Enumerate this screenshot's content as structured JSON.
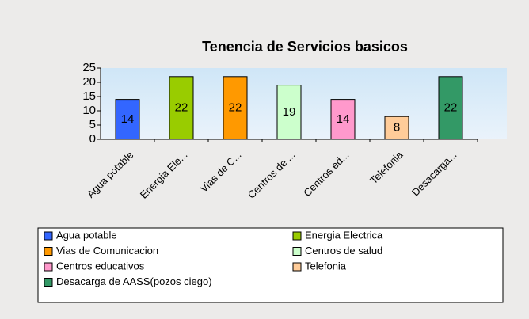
{
  "chart_data": {
    "type": "bar",
    "title": "Tenencia de Servicios basicos",
    "categories": [
      "Agua potable",
      "Energia Ele...",
      "Vias de C...",
      "Centros de ...",
      "Centros ed...",
      "Telefonia",
      "Desacarga..."
    ],
    "legend": [
      "Agua potable",
      "Energia Electrica",
      "Vias de Comunicacion",
      "Centros de salud",
      "Centros educativos",
      "Telefonia",
      "Desacarga de AASS(pozos ciego)"
    ],
    "values": [
      14,
      22,
      22,
      19,
      14,
      8,
      22
    ],
    "colors": [
      "#3366ff",
      "#99cc00",
      "#ff9900",
      "#ccffcc",
      "#ff99cc",
      "#ffcc99",
      "#339966"
    ],
    "ylim": [
      0,
      25
    ],
    "yticks": [
      0,
      5,
      10,
      15,
      20,
      25
    ],
    "grid": false
  }
}
